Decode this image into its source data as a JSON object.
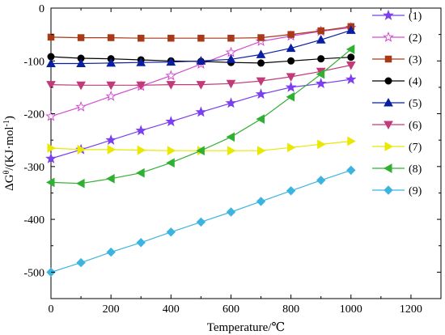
{
  "chart_data": {
    "type": "line",
    "title": "",
    "xlabel": "Temperature/℃",
    "ylabel": "ΔGθ/(KJ·mol-1)",
    "ylabel_parts": {
      "pre": "ΔG",
      "sup": "θ",
      "mid": "/(KJ·mol",
      "sup2": "-1",
      "post": ")"
    },
    "xlim": [
      0,
      1300
    ],
    "ylim": [
      -550,
      0
    ],
    "xticks": [
      0,
      200,
      400,
      600,
      800,
      1000,
      1200
    ],
    "yticks": [
      0,
      -100,
      -200,
      -300,
      -400,
      -500
    ],
    "legend_position": "right",
    "grid": false,
    "x": [
      0,
      100,
      200,
      300,
      400,
      500,
      600,
      700,
      800,
      900,
      1000
    ],
    "series": [
      {
        "name": "(1)",
        "color": "#7b3ff0",
        "marker": "star-filled",
        "values": [
          -285,
          -268,
          -250,
          -232,
          -215,
          -197,
          -180,
          -163,
          -150,
          -143,
          -135
        ]
      },
      {
        "name": "(2)",
        "color": "#d24ed2",
        "marker": "star-open",
        "values": [
          -205,
          -187,
          -167,
          -148,
          -128,
          -106,
          -84,
          -63,
          -53,
          -44,
          -37
        ]
      },
      {
        "name": "(3)",
        "color": "#a83a18",
        "marker": "square",
        "values": [
          -55,
          -56,
          -56,
          -57,
          -57,
          -57,
          -57,
          -56,
          -50,
          -43,
          -35
        ]
      },
      {
        "name": "(4)",
        "color": "#000000",
        "marker": "circle",
        "values": [
          -92,
          -95,
          -96,
          -98,
          -100,
          -101,
          -103,
          -104,
          -100,
          -96,
          -93
        ]
      },
      {
        "name": "(5)",
        "color": "#0a1fa0",
        "marker": "triangle-up",
        "values": [
          -105,
          -105,
          -104,
          -103,
          -102,
          -100,
          -97,
          -88,
          -76,
          -60,
          -42
        ]
      },
      {
        "name": "(6)",
        "color": "#c23a78",
        "marker": "triangle-down",
        "values": [
          -145,
          -146,
          -146,
          -146,
          -145,
          -145,
          -143,
          -138,
          -130,
          -120,
          -108
        ]
      },
      {
        "name": "(7)",
        "color": "#e8e800",
        "marker": "triangle-right",
        "values": [
          -265,
          -268,
          -268,
          -269,
          -270,
          -270,
          -270,
          -270,
          -264,
          -258,
          -252
        ]
      },
      {
        "name": "(8)",
        "color": "#30b030",
        "marker": "triangle-left",
        "values": [
          -330,
          -332,
          -323,
          -312,
          -293,
          -270,
          -244,
          -210,
          -168,
          -125,
          -78
        ]
      },
      {
        "name": "(9)",
        "color": "#3cb4e0",
        "marker": "diamond",
        "values": [
          -500,
          -482,
          -462,
          -444,
          -424,
          -405,
          -386,
          -366,
          -346,
          -326,
          -307
        ]
      }
    ]
  }
}
